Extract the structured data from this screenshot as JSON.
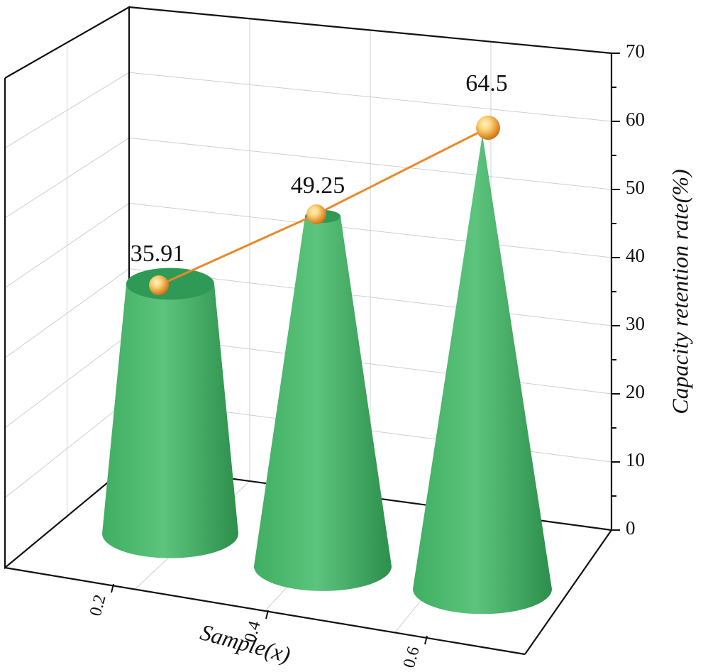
{
  "chart_data": {
    "type": "bar",
    "style": "3d-cone",
    "categories": [
      "0.2",
      "0.4",
      "0.6"
    ],
    "values": [
      35.91,
      49.25,
      64.5
    ],
    "data_labels": [
      "35.91",
      "49.25",
      "64.5"
    ],
    "xlabel": "Sample(x)",
    "ylabel": "Capacity retention rate(%)",
    "ylim": [
      0,
      70
    ],
    "yticks": [
      "0",
      "10",
      "20",
      "30",
      "40",
      "50",
      "60",
      "70"
    ],
    "grid": true,
    "colors": {
      "cone_light": "#5cc47c",
      "cone_mid": "#3fae62",
      "cone_dark": "#2c8f4c",
      "cone_top": "#2f9a55",
      "line": "#e8892b",
      "marker_light": "#ffd27a",
      "marker_dark": "#c96a08"
    }
  }
}
